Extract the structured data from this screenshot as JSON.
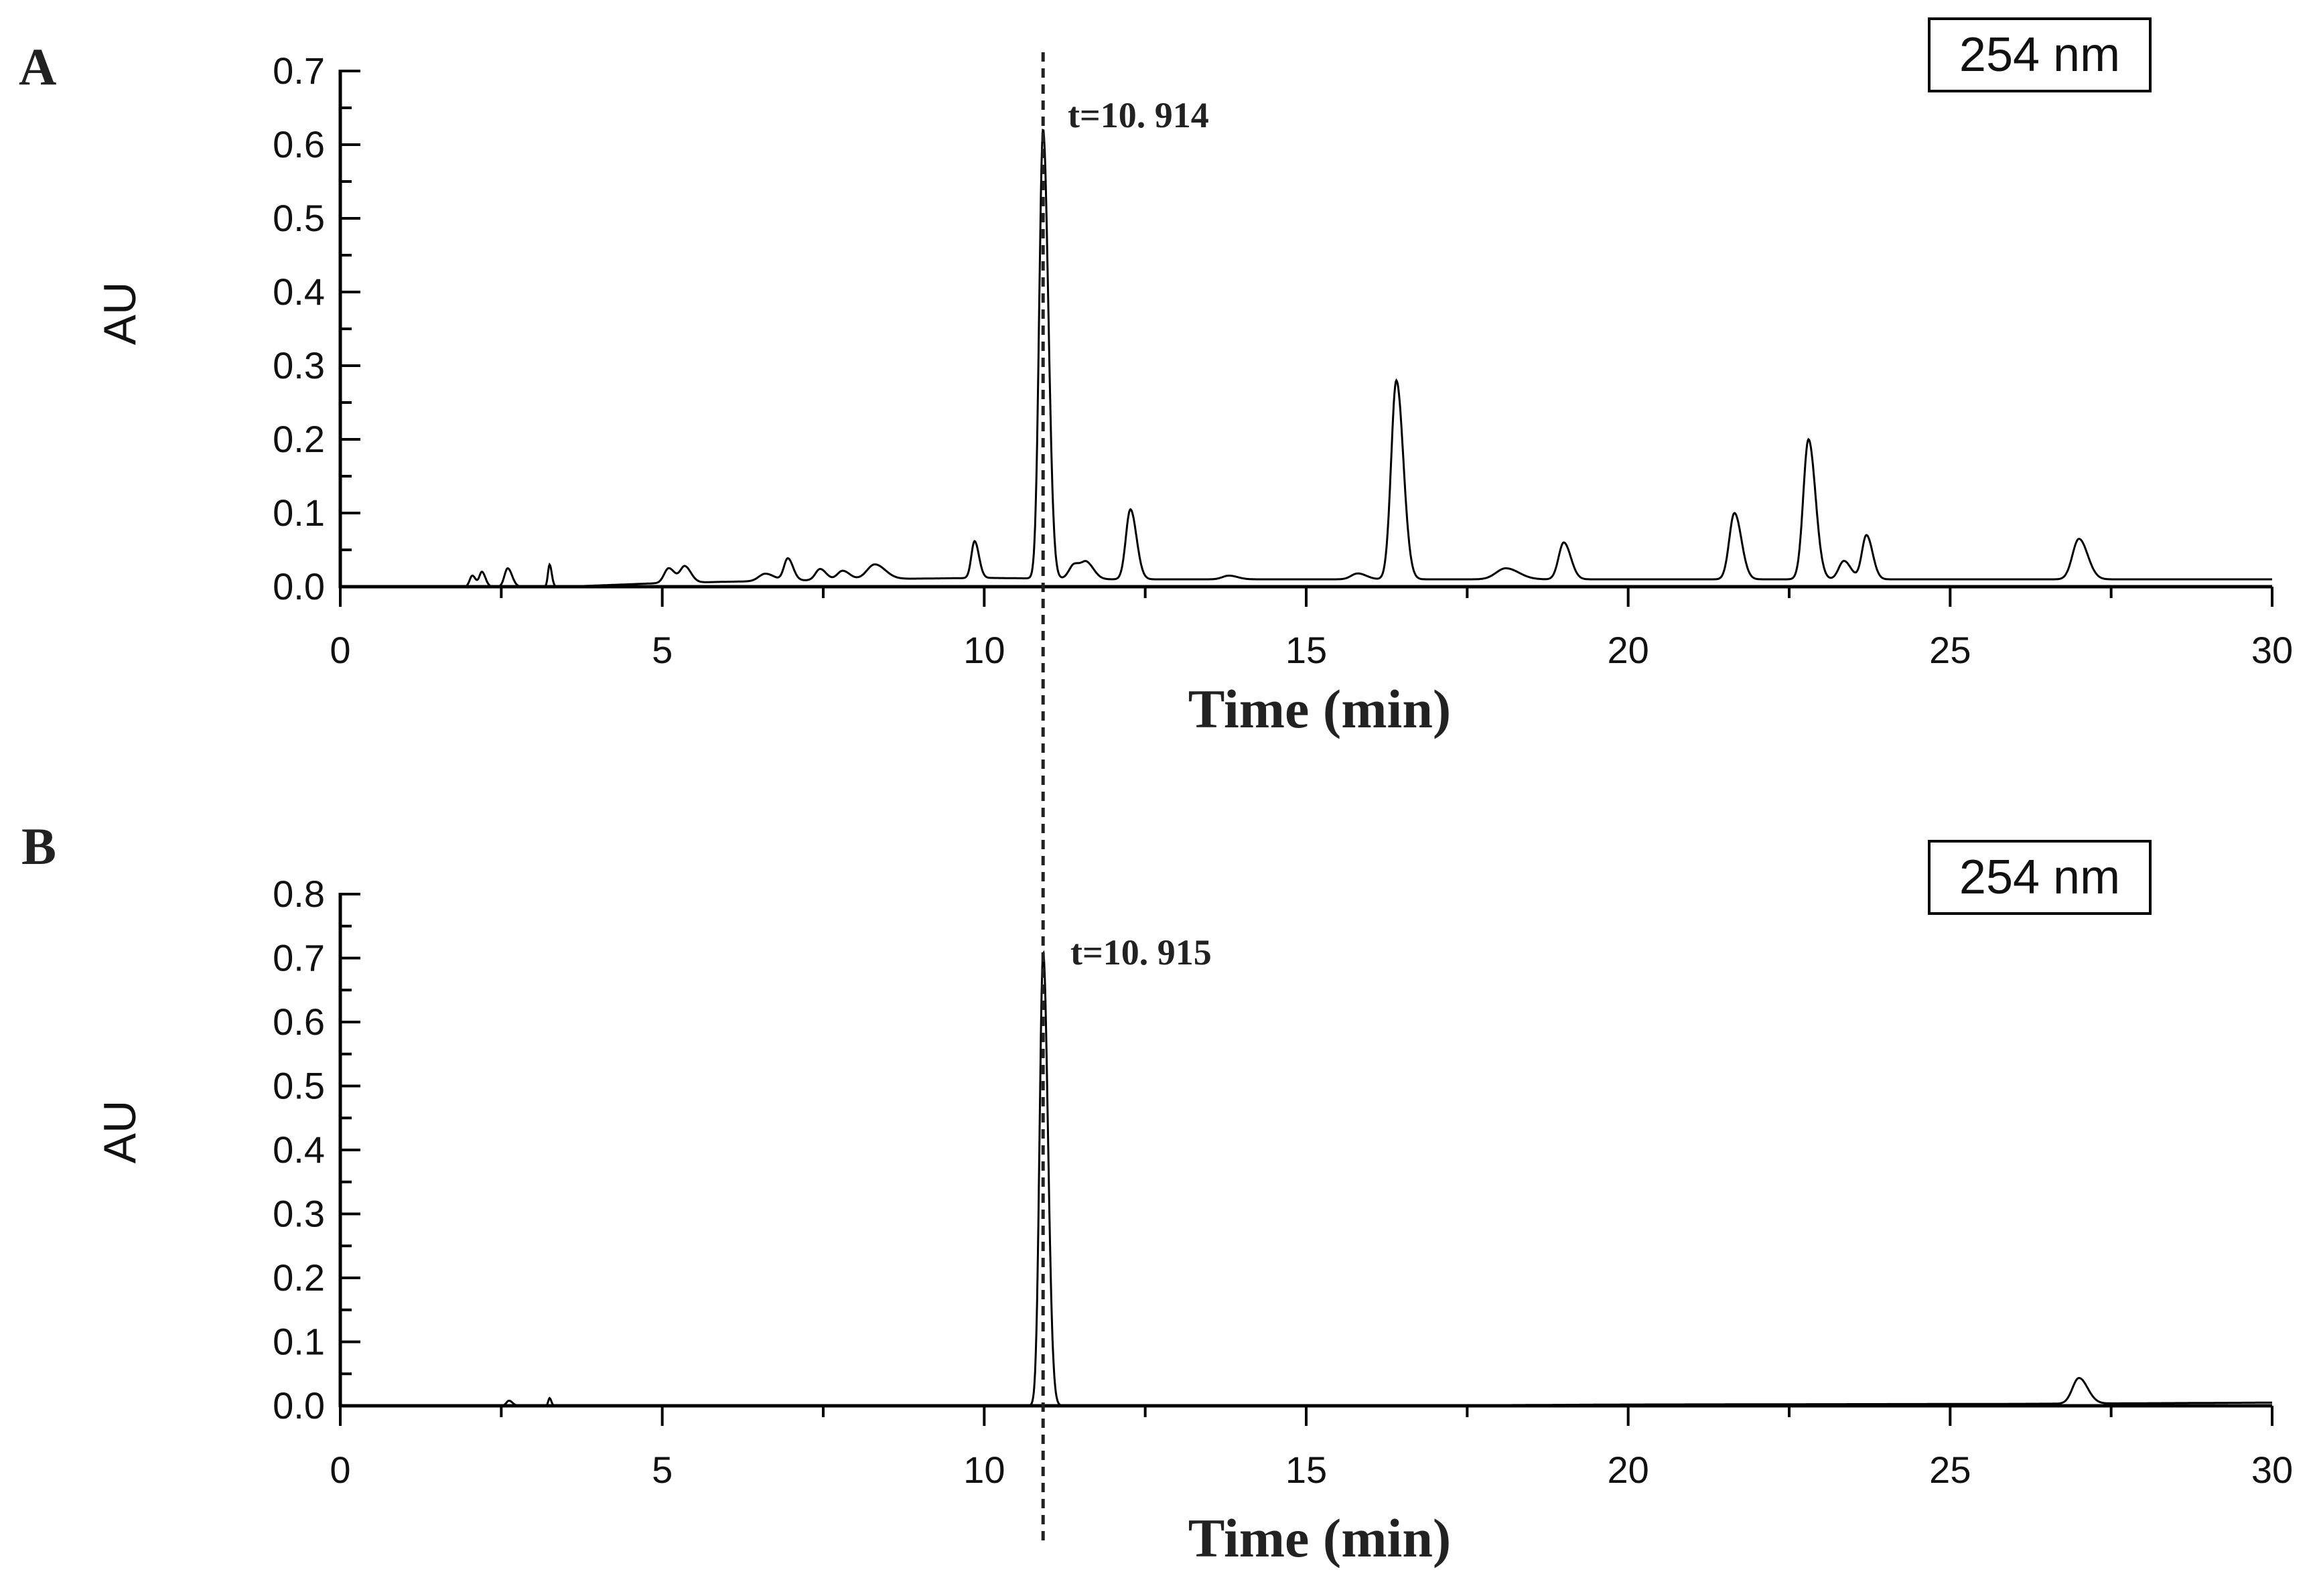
{
  "chart_data": [
    {
      "type": "line",
      "panel": "A",
      "wavelength": "254 nm",
      "annotation": "t=10. 914",
      "marker_x": 10.914,
      "xlabel": "Time (min)",
      "ylabel": "AU",
      "xlim": [
        0,
        30
      ],
      "ylim": [
        0,
        0.7
      ],
      "xticks": [
        0,
        5,
        10,
        15,
        20,
        25,
        30
      ],
      "yticks": [
        0.0,
        0.1,
        0.2,
        0.3,
        0.4,
        0.5,
        0.6,
        0.7
      ],
      "xtick_labels": [
        "0",
        "5",
        "10",
        "15",
        "20",
        "25",
        "30"
      ],
      "ytick_labels": [
        "0.0",
        "0.1",
        "0.2",
        "0.3",
        "0.4",
        "0.5",
        "0.6",
        "0.7"
      ],
      "baseline": [
        [
          0,
          0
        ],
        [
          3.5,
          0
        ],
        [
          5,
          0.005
        ],
        [
          8,
          0.01
        ],
        [
          10,
          0.012
        ],
        [
          12,
          0.01
        ],
        [
          16,
          0.01
        ],
        [
          20,
          0.01
        ],
        [
          25,
          0.01
        ],
        [
          30,
          0.01
        ]
      ],
      "peaks": [
        {
          "t": 2.05,
          "h": 0.015,
          "w": 0.04
        },
        {
          "t": 2.2,
          "h": 0.02,
          "w": 0.04
        },
        {
          "t": 2.6,
          "h": 0.025,
          "w": 0.05
        },
        {
          "t": 3.25,
          "h": 0.03,
          "w": 0.025
        },
        {
          "t": 5.1,
          "h": 0.02,
          "w": 0.07
        },
        {
          "t": 5.35,
          "h": 0.022,
          "w": 0.07
        },
        {
          "t": 6.6,
          "h": 0.01,
          "w": 0.1
        },
        {
          "t": 6.95,
          "h": 0.03,
          "w": 0.06
        },
        {
          "t": 7.45,
          "h": 0.015,
          "w": 0.07
        },
        {
          "t": 7.8,
          "h": 0.012,
          "w": 0.08
        },
        {
          "t": 8.3,
          "h": 0.02,
          "w": 0.12
        },
        {
          "t": 9.85,
          "h": 0.05,
          "w": 0.05
        },
        {
          "t": 10.914,
          "h": 0.61,
          "w": 0.06
        },
        {
          "t": 11.4,
          "h": 0.02,
          "w": 0.08
        },
        {
          "t": 11.6,
          "h": 0.02,
          "w": 0.08
        },
        {
          "t": 12.27,
          "h": 0.095,
          "w": 0.07
        },
        {
          "t": 13.8,
          "h": 0.005,
          "w": 0.1
        },
        {
          "t": 15.8,
          "h": 0.008,
          "w": 0.1
        },
        {
          "t": 16.4,
          "h": 0.27,
          "w": 0.08
        },
        {
          "t": 18.1,
          "h": 0.015,
          "w": 0.15
        },
        {
          "t": 19.0,
          "h": 0.05,
          "w": 0.08
        },
        {
          "t": 21.65,
          "h": 0.09,
          "w": 0.08
        },
        {
          "t": 22.8,
          "h": 0.19,
          "w": 0.08
        },
        {
          "t": 23.35,
          "h": 0.025,
          "w": 0.08
        },
        {
          "t": 23.7,
          "h": 0.06,
          "w": 0.07
        },
        {
          "t": 27.0,
          "h": 0.055,
          "w": 0.1
        }
      ]
    },
    {
      "type": "line",
      "panel": "B",
      "wavelength": "254 nm",
      "annotation": "t=10. 915",
      "marker_x": 10.915,
      "xlabel": "Time (min)",
      "ylabel": "AU",
      "xlim": [
        0,
        30
      ],
      "ylim": [
        0,
        0.8
      ],
      "xticks": [
        0,
        5,
        10,
        15,
        20,
        25,
        30
      ],
      "yticks": [
        0.0,
        0.1,
        0.2,
        0.3,
        0.4,
        0.5,
        0.6,
        0.7,
        0.8
      ],
      "xtick_labels": [
        "0",
        "5",
        "10",
        "15",
        "20",
        "25",
        "30"
      ],
      "ytick_labels": [
        "0.0",
        "0.1",
        "0.2",
        "0.3",
        "0.4",
        "0.5",
        "0.6",
        "0.7",
        "0.8"
      ],
      "baseline": [
        [
          0,
          0
        ],
        [
          16,
          0
        ],
        [
          20,
          0.002
        ],
        [
          26,
          0.003
        ],
        [
          30,
          0.005
        ]
      ],
      "peaks": [
        {
          "t": 2.62,
          "h": 0.008,
          "w": 0.04
        },
        {
          "t": 3.25,
          "h": 0.012,
          "w": 0.02
        },
        {
          "t": 10.915,
          "h": 0.71,
          "w": 0.055
        },
        {
          "t": 27.0,
          "h": 0.04,
          "w": 0.1
        }
      ]
    }
  ]
}
